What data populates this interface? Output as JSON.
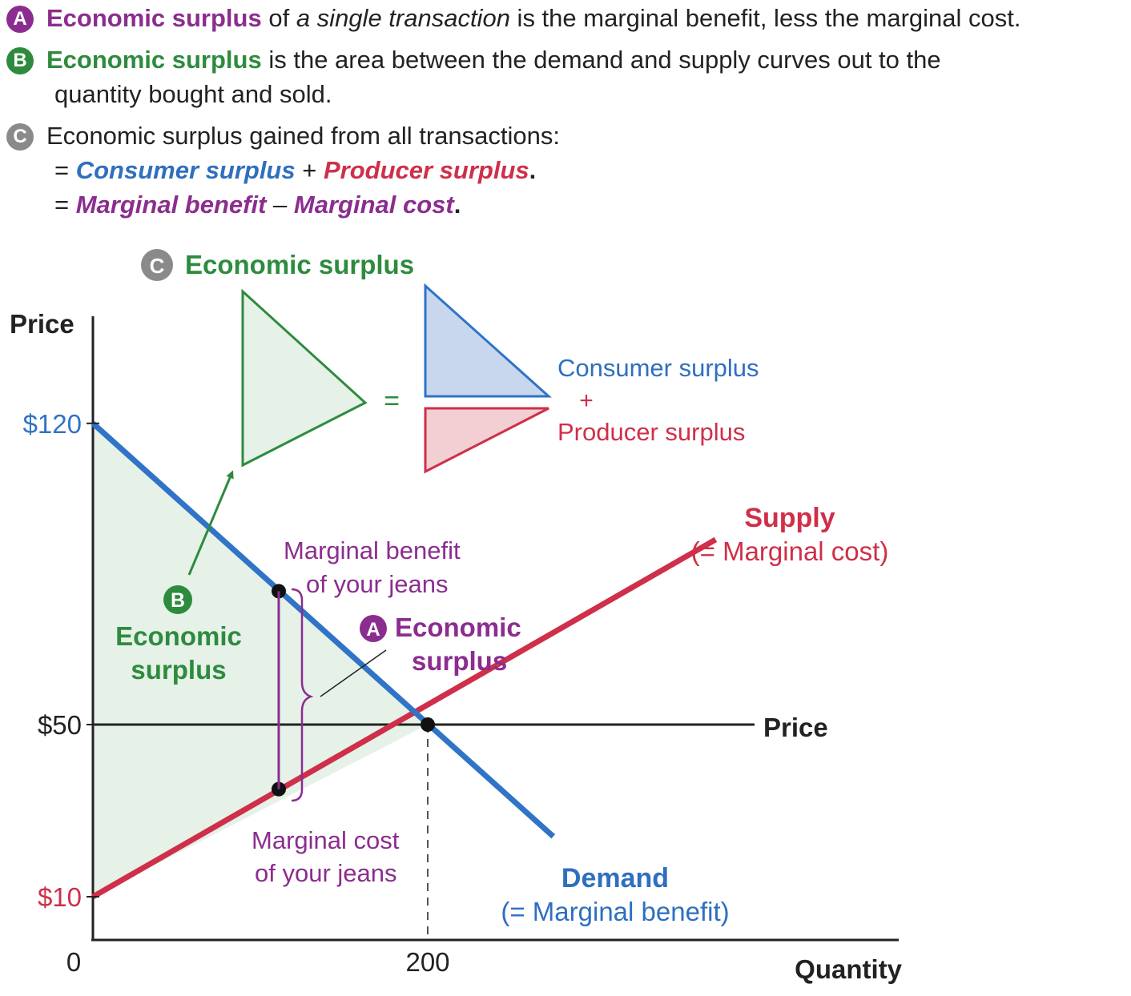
{
  "header": {
    "a_badge": "A",
    "a_term": "Economic surplus",
    "a_text1": " of ",
    "a_italic": "a single transaction",
    "a_text2": " is the marginal benefit, less the marginal cost.",
    "b_badge": "B",
    "b_term": "Economic surplus",
    "b_text1": " is the area between the demand and supply curves out to the",
    "b_text2": "quantity bought and sold.",
    "c_badge": "C",
    "c_text": "Economic surplus gained from all transactions:",
    "c_eq1_prefix": "= ",
    "c_eq1_cs": "Consumer surplus",
    "c_eq1_plus": " + ",
    "c_eq1_ps": "Producer surplus",
    "c_eq1_end": ".",
    "c_eq2_prefix": "= ",
    "c_eq2_mb": "Marginal benefit",
    "c_eq2_minus": " – ",
    "c_eq2_mc": "Marginal cost",
    "c_eq2_end": "."
  },
  "inset": {
    "badge": "C",
    "title": "Economic surplus",
    "equals": "=",
    "consumer_surplus": "Consumer surplus",
    "plus": "+",
    "producer_surplus": "Producer surplus"
  },
  "annotations": {
    "mb_line1": "Marginal benefit",
    "mb_line2": "of your jeans",
    "mc_line1": "Marginal cost",
    "mc_line2": "of your jeans",
    "a_badge": "A",
    "a_line1": "Economic",
    "a_line2": "surplus",
    "b_badge": "B",
    "b_line1": "Economic",
    "b_line2": "surplus",
    "supply_line1": "Supply",
    "supply_line2": "(= Marginal cost)",
    "demand_line1": "Demand",
    "demand_line2": "(= Marginal benefit)",
    "price_line_label": "Price"
  },
  "colors": {
    "demand": "#2f74c6",
    "supply": "#cf2f49",
    "surplus_fill": "#e6f1e8",
    "surplus_stroke": "#2e8b3e",
    "consumer_fill": "#c9d7ee",
    "producer_fill": "#f2cfd2",
    "purple": "#8b2d8f"
  },
  "chart_data": {
    "type": "line",
    "xlabel": "Quantity",
    "ylabel": "Price",
    "x_ticks": [
      {
        "value": 0,
        "label": "0"
      },
      {
        "value": 200,
        "label": "200"
      }
    ],
    "y_ticks": [
      {
        "value": 120,
        "label": "$120"
      },
      {
        "value": 50,
        "label": "$50"
      },
      {
        "value": 10,
        "label": "$10"
      }
    ],
    "series": [
      {
        "name": "Demand",
        "points": [
          [
            0,
            120
          ],
          [
            275,
            24
          ]
        ]
      },
      {
        "name": "Supply",
        "points": [
          [
            0,
            10
          ],
          [
            372,
            93
          ]
        ]
      }
    ],
    "price_line": 50,
    "equilibrium": {
      "quantity": 200,
      "price": 50
    },
    "your_jeans": {
      "quantity": 111,
      "marginal_benefit": 81,
      "marginal_cost": 35
    }
  }
}
